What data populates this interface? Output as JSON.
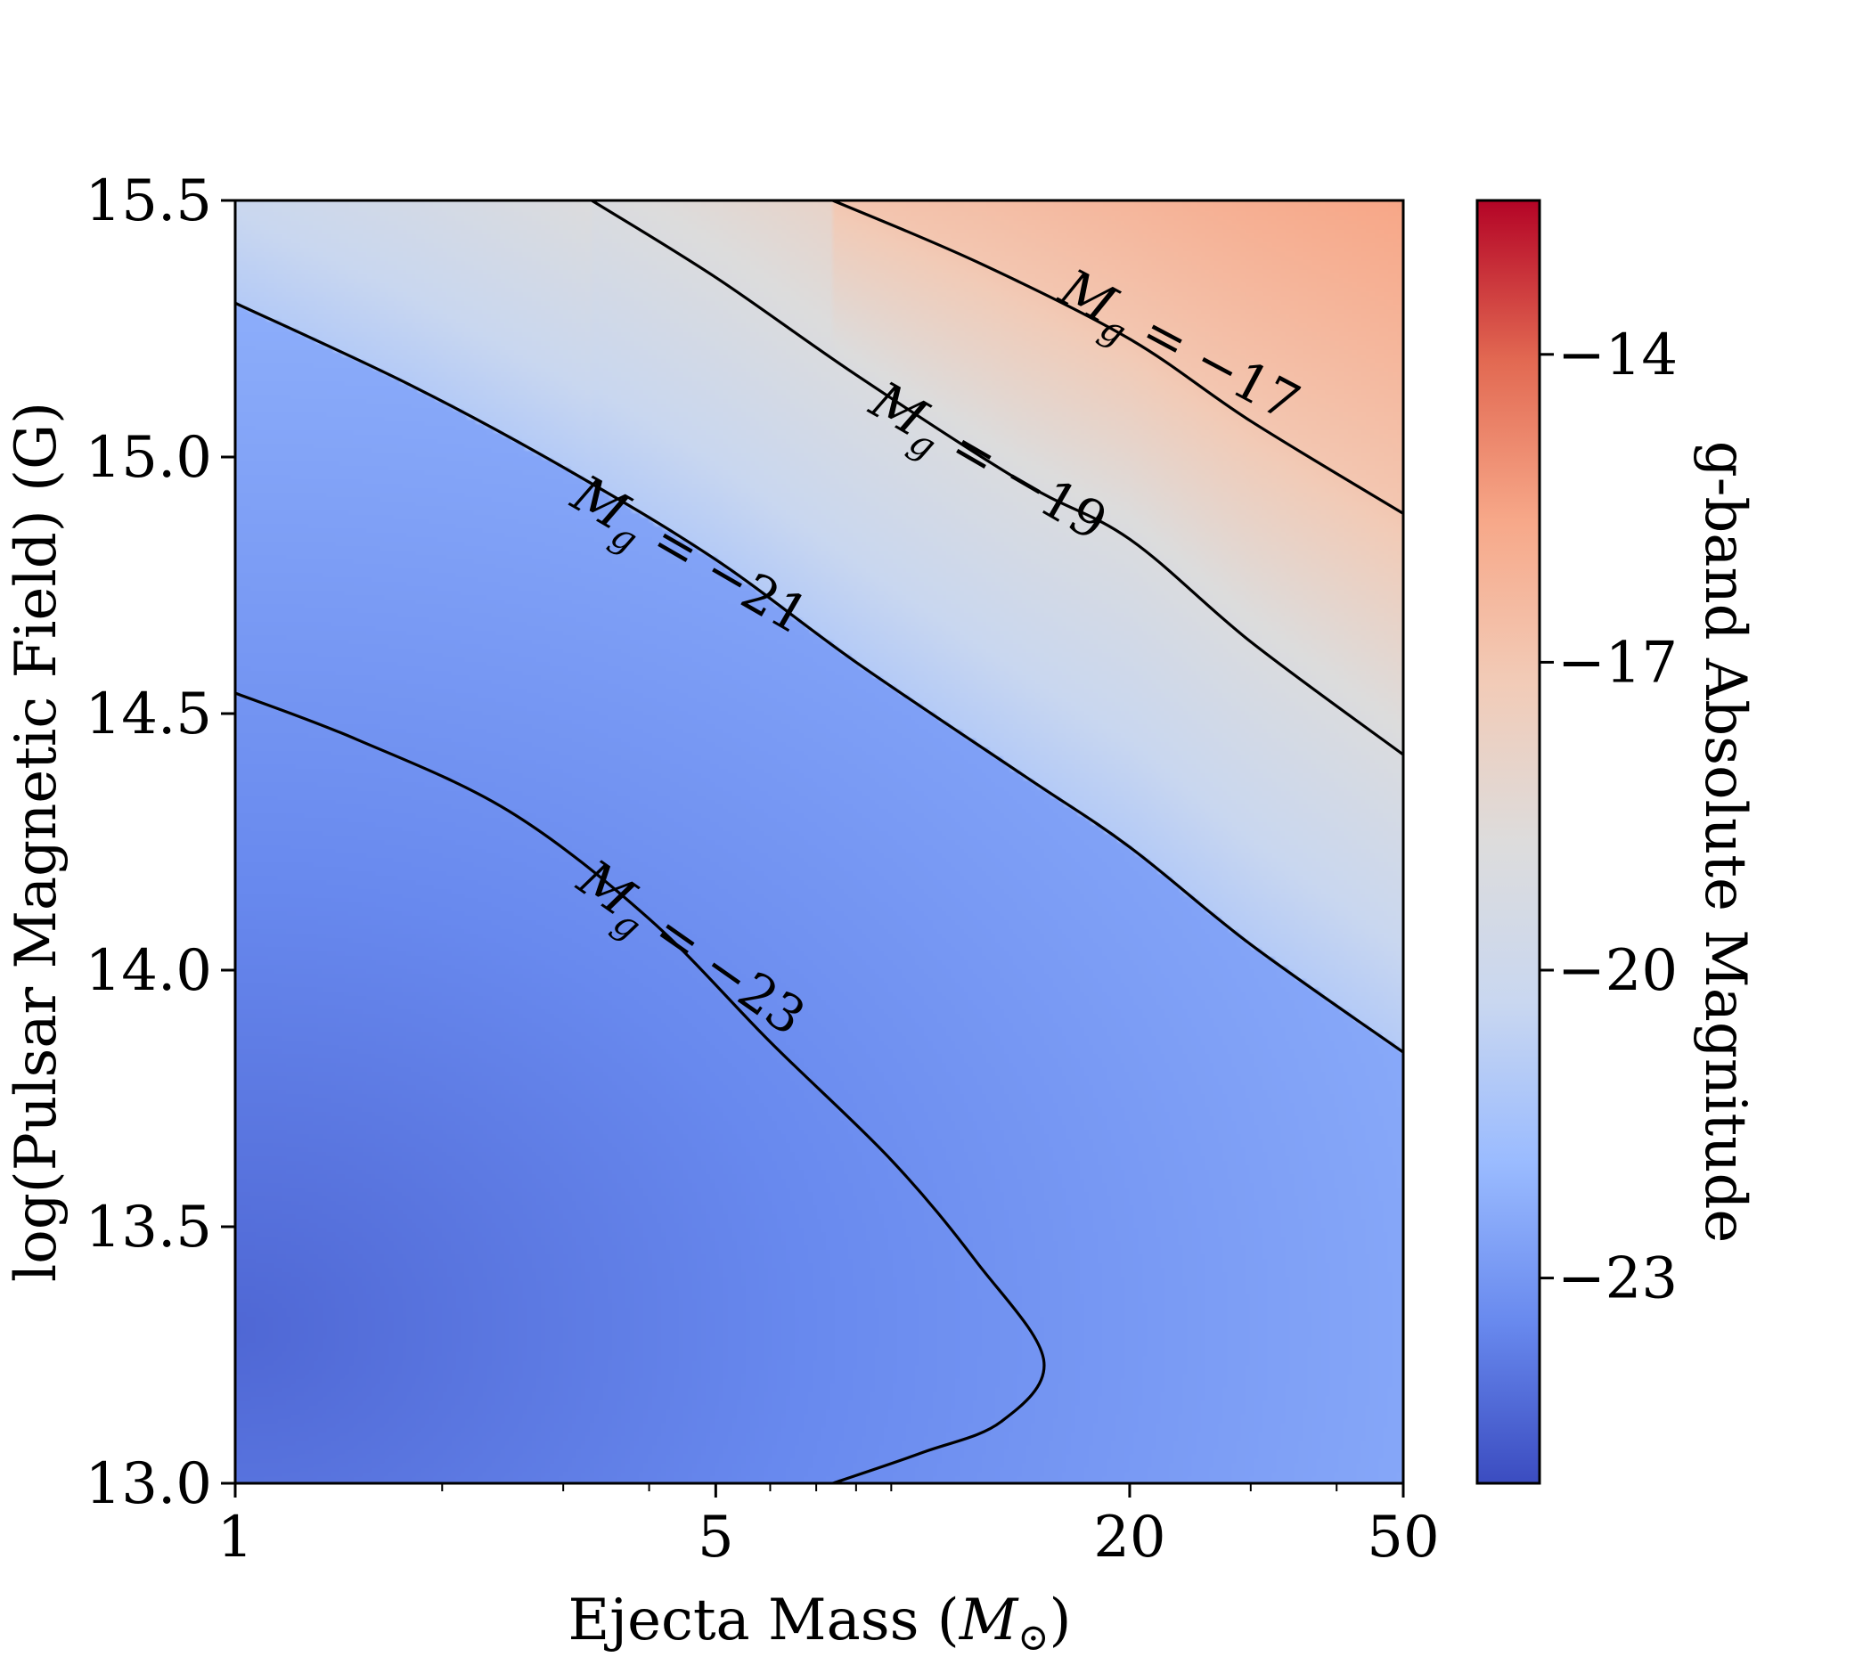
{
  "chart_data": {
    "type": "heatmap",
    "title": "",
    "xlabel": {
      "text": "Ejecta Mass (",
      "symbol": "M",
      "subscript": "⊙",
      "close": ")"
    },
    "ylabel": "log(Pulsar Magnetic Field) (G)",
    "colorbar_label": "g-band Absolute Magnitude",
    "xscale": "log",
    "xlim": [
      1,
      50
    ],
    "ylim": [
      13.0,
      15.5
    ],
    "x_ticks": [
      1,
      5,
      20,
      50
    ],
    "x_tick_labels": [
      "1",
      "5",
      "20",
      "50"
    ],
    "y_ticks": [
      13.0,
      13.5,
      14.0,
      14.5,
      15.0,
      15.5
    ],
    "y_tick_labels": [
      "13.0",
      "13.5",
      "14.0",
      "14.5",
      "15.0",
      "15.5"
    ],
    "colorbar_range": [
      -25.0,
      -12.5
    ],
    "colorbar_ticks": [
      -14,
      -17,
      -20,
      -23
    ],
    "colorbar_tick_labels": [
      "−14",
      "−17",
      "−20",
      "−23"
    ],
    "colormap": "coolwarm",
    "colormap_stops": [
      "#3b4cc0",
      "#6889ee",
      "#9abbff",
      "#c9d7f0",
      "#dddcdc",
      "#f2cbb7",
      "#f7a889",
      "#e26952",
      "#b40426"
    ],
    "contours": [
      {
        "level": -17,
        "label_text": "= −17",
        "points": [
          [
            7.4,
            15.5
          ],
          [
            12,
            15.38
          ],
          [
            20,
            15.23
          ],
          [
            30,
            15.07
          ],
          [
            50,
            14.89
          ]
        ]
      },
      {
        "level": -19,
        "label_text": "= −19",
        "points": [
          [
            3.3,
            15.5
          ],
          [
            5,
            15.35
          ],
          [
            8,
            15.16
          ],
          [
            14,
            14.95
          ],
          [
            20,
            14.84
          ],
          [
            30,
            14.64
          ],
          [
            50,
            14.42
          ]
        ]
      },
      {
        "level": -21,
        "label_text": "= −21",
        "points": [
          [
            1,
            15.3
          ],
          [
            1.8,
            15.14
          ],
          [
            3,
            14.98
          ],
          [
            5,
            14.8
          ],
          [
            8,
            14.6
          ],
          [
            14,
            14.38
          ],
          [
            20,
            14.24
          ],
          [
            30,
            14.05
          ],
          [
            50,
            13.84
          ]
        ]
      },
      {
        "level": -23,
        "label_text": "= −23",
        "points": [
          [
            1,
            14.54
          ],
          [
            1.5,
            14.45
          ],
          [
            2.5,
            14.31
          ],
          [
            4,
            14.1
          ],
          [
            6,
            13.86
          ],
          [
            9,
            13.63
          ],
          [
            12,
            13.43
          ],
          [
            15,
            13.24
          ],
          [
            13,
            13.12
          ],
          [
            10,
            13.06
          ],
          [
            7.4,
            13.0
          ]
        ]
      }
    ],
    "surface": {
      "description_free": true,
      "b_peak": 13.3,
      "mag_min": -24.3,
      "note_levels": [
        -23,
        -21,
        -19,
        -17
      ]
    }
  }
}
